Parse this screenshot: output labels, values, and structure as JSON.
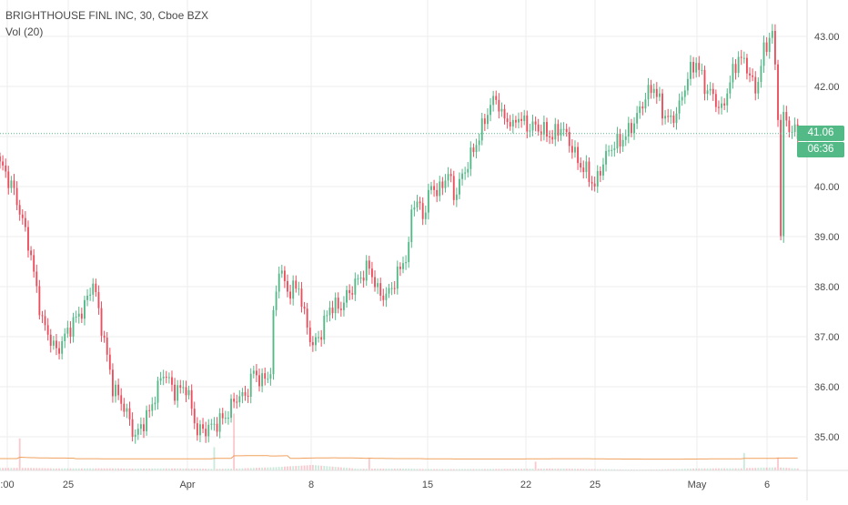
{
  "header": {
    "symbol_line": "BRIGHTHOUSE FINL INC, 30, Cboe BZX",
    "volume_line": "Vol (20)"
  },
  "price_tag": "41.06",
  "countdown_tag": "06:36",
  "colors": {
    "up": "#53b987",
    "down": "#eb4d5c",
    "grid": "#eeeeee",
    "last_price_line": "#53b987",
    "volume_ma": "#f0a15d"
  },
  "chart_data": {
    "type": "candlestick",
    "title": "BRIGHTHOUSE FINL INC, 30, Cboe BZX",
    "ylim": [
      34.5,
      43.5
    ],
    "y_ticks": [
      "35.00",
      "36.00",
      "37.00",
      "38.00",
      "39.00",
      "40.00",
      "41.00",
      "42.00",
      "43.00"
    ],
    "x_tick_labels": [
      ":00",
      "25",
      "Apr",
      "8",
      "15",
      "22",
      "25",
      "May",
      "6"
    ],
    "last_price": 41.06,
    "grid": true,
    "anchors": [
      [
        0,
        40.5
      ],
      [
        5,
        39.9
      ],
      [
        10,
        38.9
      ],
      [
        15,
        37.3
      ],
      [
        20,
        36.7
      ],
      [
        25,
        37.2
      ],
      [
        30,
        37.6
      ],
      [
        33,
        38.1
      ],
      [
        36,
        37.2
      ],
      [
        40,
        36.0
      ],
      [
        44,
        35.6
      ],
      [
        48,
        35.0
      ],
      [
        53,
        35.5
      ],
      [
        58,
        36.3
      ],
      [
        62,
        35.9
      ],
      [
        66,
        36.0
      ],
      [
        70,
        35.1
      ],
      [
        75,
        35.2
      ],
      [
        80,
        35.4
      ],
      [
        84,
        35.8
      ],
      [
        87,
        35.8
      ],
      [
        90,
        36.3
      ],
      [
        93,
        36.1
      ],
      [
        96,
        36.3
      ],
      [
        97,
        37.4
      ],
      [
        99,
        38.4
      ],
      [
        102,
        37.9
      ],
      [
        106,
        38.0
      ],
      [
        108,
        37.4
      ],
      [
        111,
        36.8
      ],
      [
        114,
        37.1
      ],
      [
        117,
        37.6
      ],
      [
        121,
        37.6
      ],
      [
        124,
        37.9
      ],
      [
        128,
        38.2
      ],
      [
        131,
        38.4
      ],
      [
        134,
        37.9
      ],
      [
        137,
        37.8
      ],
      [
        140,
        38.1
      ],
      [
        143,
        38.5
      ],
      [
        145,
        38.7
      ],
      [
        146,
        39.6
      ],
      [
        148,
        39.7
      ],
      [
        150,
        39.4
      ],
      [
        153,
        40.0
      ],
      [
        156,
        39.9
      ],
      [
        159,
        40.3
      ],
      [
        161,
        39.8
      ],
      [
        164,
        40.2
      ],
      [
        167,
        40.6
      ],
      [
        170,
        41.0
      ],
      [
        173,
        41.5
      ],
      [
        176,
        41.8
      ],
      [
        178,
        41.4
      ],
      [
        181,
        41.3
      ],
      [
        184,
        41.4
      ],
      [
        187,
        41.2
      ],
      [
        190,
        41.2
      ],
      [
        193,
        41.1
      ],
      [
        196,
        41.0
      ],
      [
        199,
        41.2
      ],
      [
        202,
        40.9
      ],
      [
        205,
        40.5
      ],
      [
        208,
        40.3
      ],
      [
        211,
        40.0
      ],
      [
        214,
        40.5
      ],
      [
        217,
        40.8
      ],
      [
        220,
        40.9
      ],
      [
        223,
        41.1
      ],
      [
        226,
        41.4
      ],
      [
        229,
        41.8
      ],
      [
        232,
        42.0
      ],
      [
        235,
        41.5
      ],
      [
        238,
        41.3
      ],
      [
        241,
        41.6
      ],
      [
        244,
        42.2
      ],
      [
        247,
        42.5
      ],
      [
        250,
        42.0
      ],
      [
        253,
        41.8
      ],
      [
        256,
        41.5
      ],
      [
        259,
        42.1
      ],
      [
        262,
        42.6
      ],
      [
        265,
        42.4
      ],
      [
        268,
        41.9
      ],
      [
        271,
        42.7
      ],
      [
        274,
        43.1
      ],
      [
        276,
        41.5
      ],
      [
        277,
        39.0
      ],
      [
        278,
        41.4
      ],
      [
        281,
        41.1
      ],
      [
        283,
        41.06
      ]
    ],
    "volume": [
      [
        0,
        2.8
      ],
      [
        20,
        1.4
      ],
      [
        48,
        1.2
      ],
      [
        71,
        1.8
      ],
      [
        84,
        1.7
      ],
      [
        97,
        2.2
      ],
      [
        111,
        3.4
      ],
      [
        127,
        1.1
      ],
      [
        146,
        1.8
      ],
      [
        160,
        1.2
      ],
      [
        175,
        1.0
      ],
      [
        200,
        1.2
      ],
      [
        211,
        1.0
      ],
      [
        233,
        0.9
      ],
      [
        247,
        1.4
      ],
      [
        262,
        1.3
      ],
      [
        276,
        2.0
      ],
      [
        283,
        1.4
      ]
    ],
    "volume_spikes": [
      [
        7,
        22
      ],
      [
        76,
        16
      ],
      [
        83,
        100
      ],
      [
        131,
        8
      ],
      [
        190,
        6
      ],
      [
        264,
        12
      ],
      [
        276,
        9
      ]
    ]
  }
}
